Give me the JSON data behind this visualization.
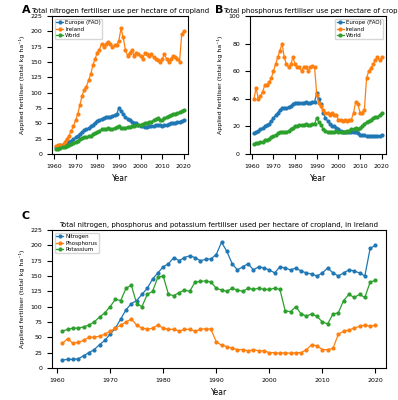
{
  "panel_A_title": "Total nitrogen fertiliser use per hectare of cropland",
  "panel_B_title": "Total phosphorus fertiliser use per hectare of cropland",
  "panel_C_title": "Total nitrogen, phosphorus and potassium fertiliser used per hectare of cropland, in Ireland",
  "ylabel_AB": "Applied fertiliser (total kg ha⁻¹)",
  "ylabel_C": "Applied fertiliser (total kg ha⁻¹)",
  "xlabel": "Year",
  "color_europe": "#1f77b4",
  "color_ireland": "#ff7f0e",
  "color_world": "#2ca02c",
  "color_nitrogen": "#1f77b4",
  "color_phosphorus": "#ff7f0e",
  "color_potassium": "#2ca02c",
  "years_AB": [
    1961,
    1962,
    1963,
    1964,
    1965,
    1966,
    1967,
    1968,
    1969,
    1970,
    1971,
    1972,
    1973,
    1974,
    1975,
    1976,
    1977,
    1978,
    1979,
    1980,
    1981,
    1982,
    1983,
    1984,
    1985,
    1986,
    1987,
    1988,
    1989,
    1990,
    1991,
    1992,
    1993,
    1994,
    1995,
    1996,
    1997,
    1998,
    1999,
    2000,
    2001,
    2002,
    2003,
    2004,
    2005,
    2006,
    2007,
    2008,
    2009,
    2010,
    2011,
    2012,
    2013,
    2014,
    2015,
    2016,
    2017,
    2018,
    2019,
    2020
  ],
  "A_europe": [
    12,
    13,
    14,
    15,
    17,
    18,
    20,
    22,
    24,
    27,
    30,
    33,
    36,
    39,
    40,
    42,
    45,
    48,
    51,
    54,
    55,
    57,
    58,
    60,
    61,
    60,
    62,
    64,
    65,
    75,
    70,
    65,
    60,
    57,
    55,
    52,
    50,
    50,
    48,
    46,
    45,
    44,
    44,
    45,
    45,
    46,
    47,
    48,
    47,
    46,
    47,
    48,
    49,
    50,
    50,
    51,
    52,
    53,
    54,
    55
  ],
  "A_ireland": [
    13,
    14,
    14,
    15,
    20,
    25,
    30,
    38,
    45,
    55,
    65,
    80,
    95,
    105,
    110,
    120,
    130,
    145,
    155,
    165,
    170,
    180,
    175,
    180,
    183,
    180,
    175,
    177,
    178,
    185,
    205,
    190,
    170,
    160,
    165,
    170,
    160,
    165,
    163,
    160,
    155,
    165,
    163,
    160,
    163,
    158,
    155,
    153,
    150,
    155,
    163,
    155,
    150,
    155,
    160,
    158,
    155,
    150,
    195,
    200
  ],
  "A_world": [
    8,
    9,
    10,
    11,
    12,
    13,
    14,
    16,
    18,
    20,
    22,
    24,
    26,
    28,
    28,
    29,
    30,
    32,
    34,
    36,
    38,
    40,
    40,
    41,
    42,
    40,
    41,
    42,
    44,
    45,
    42,
    42,
    43,
    44,
    44,
    45,
    46,
    47,
    48,
    48,
    49,
    50,
    51,
    52,
    53,
    55,
    57,
    58,
    55,
    55,
    58,
    60,
    62,
    64,
    65,
    66,
    67,
    68,
    70,
    72
  ],
  "B_europe": [
    15,
    16,
    17,
    18,
    19,
    20,
    21,
    22,
    24,
    26,
    28,
    30,
    32,
    33,
    33,
    33,
    34,
    35,
    36,
    37,
    37,
    37,
    37,
    37,
    38,
    37,
    37,
    38,
    38,
    44,
    40,
    36,
    30,
    26,
    24,
    22,
    20,
    20,
    19,
    18,
    17,
    16,
    16,
    16,
    16,
    16,
    16,
    16,
    15,
    14,
    14,
    14,
    13,
    13,
    13,
    13,
    13,
    13,
    13,
    14
  ],
  "B_ireland": [
    40,
    48,
    40,
    42,
    45,
    50,
    50,
    52,
    55,
    60,
    65,
    70,
    75,
    80,
    70,
    65,
    63,
    65,
    70,
    65,
    63,
    63,
    60,
    63,
    63,
    60,
    63,
    64,
    63,
    43,
    37,
    35,
    32,
    30,
    30,
    28,
    30,
    28,
    28,
    25,
    25,
    24,
    25,
    24,
    25,
    25,
    30,
    38,
    36,
    30,
    30,
    32,
    55,
    60,
    62,
    65,
    68,
    70,
    68,
    70
  ],
  "B_world": [
    7,
    8,
    8,
    9,
    9,
    10,
    10,
    11,
    12,
    13,
    14,
    15,
    16,
    16,
    16,
    16,
    17,
    18,
    19,
    20,
    20,
    21,
    21,
    21,
    22,
    21,
    21,
    22,
    22,
    26,
    23,
    21,
    18,
    17,
    16,
    16,
    16,
    16,
    17,
    16,
    16,
    16,
    16,
    17,
    17,
    18,
    18,
    19,
    18,
    19,
    20,
    22,
    23,
    24,
    25,
    26,
    27,
    27,
    28,
    30
  ],
  "years_C": [
    1961,
    1962,
    1963,
    1964,
    1965,
    1966,
    1967,
    1968,
    1969,
    1970,
    1971,
    1972,
    1973,
    1974,
    1975,
    1976,
    1977,
    1978,
    1979,
    1980,
    1981,
    1982,
    1983,
    1984,
    1985,
    1986,
    1987,
    1988,
    1989,
    1990,
    1991,
    1992,
    1993,
    1994,
    1995,
    1996,
    1997,
    1998,
    1999,
    2000,
    2001,
    2002,
    2003,
    2004,
    2005,
    2006,
    2007,
    2008,
    2009,
    2010,
    2011,
    2012,
    2013,
    2014,
    2015,
    2016,
    2017,
    2018,
    2019,
    2020
  ],
  "C_nitrogen": [
    13,
    14,
    14,
    15,
    20,
    25,
    30,
    38,
    45,
    55,
    65,
    80,
    95,
    105,
    110,
    120,
    130,
    145,
    155,
    165,
    170,
    180,
    175,
    180,
    183,
    180,
    175,
    177,
    178,
    185,
    205,
    190,
    170,
    160,
    165,
    170,
    160,
    165,
    163,
    160,
    155,
    165,
    163,
    160,
    163,
    158,
    155,
    153,
    150,
    155,
    163,
    155,
    150,
    155,
    160,
    158,
    155,
    150,
    195,
    200
  ],
  "C_phosphorus": [
    40,
    48,
    40,
    42,
    45,
    50,
    50,
    52,
    55,
    60,
    65,
    70,
    75,
    80,
    70,
    65,
    63,
    65,
    70,
    65,
    63,
    63,
    60,
    63,
    63,
    60,
    63,
    64,
    63,
    43,
    37,
    35,
    32,
    30,
    30,
    28,
    30,
    28,
    28,
    25,
    25,
    24,
    25,
    24,
    25,
    25,
    30,
    38,
    36,
    30,
    30,
    32,
    55,
    60,
    62,
    65,
    68,
    70,
    68,
    70
  ],
  "C_potassium": [
    60,
    63,
    65,
    65,
    67,
    70,
    75,
    83,
    90,
    100,
    112,
    110,
    130,
    135,
    105,
    100,
    120,
    125,
    148,
    150,
    120,
    118,
    123,
    127,
    125,
    140,
    141,
    142,
    140,
    130,
    127,
    125,
    130,
    127,
    125,
    130,
    128,
    130,
    128,
    128,
    130,
    128,
    93,
    92,
    100,
    88,
    85,
    88,
    84,
    75,
    72,
    88,
    90,
    110,
    120,
    115,
    120,
    115,
    140,
    143
  ],
  "A_ylim": [
    0,
    225
  ],
  "B_ylim": [
    0,
    100
  ],
  "C_ylim": [
    0,
    225
  ],
  "xlim": [
    1959,
    2022
  ],
  "xticks": [
    1960,
    1970,
    1980,
    1990,
    2000,
    2010,
    2020
  ]
}
